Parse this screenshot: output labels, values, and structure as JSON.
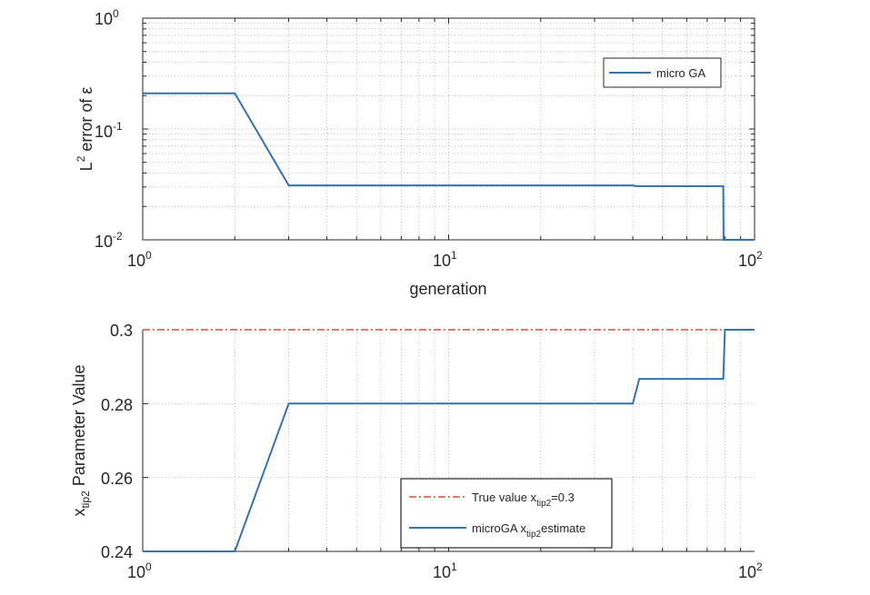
{
  "chart_data": [
    {
      "type": "line",
      "xscale": "log",
      "yscale": "log",
      "xlabel": "generation",
      "ylabel": "L² error of ε",
      "xlim": [
        1,
        100
      ],
      "ylim": [
        0.01,
        1
      ],
      "xticks": [
        "10^0",
        "10^1",
        "10^2"
      ],
      "yticks": [
        "10^-2",
        "10^-1",
        "10^0"
      ],
      "grid": true,
      "legend_position": "upper right",
      "series": [
        {
          "name": "micro GA",
          "color": "#3572b0",
          "x": [
            1,
            2,
            3,
            40,
            41,
            79,
            79.2,
            100
          ],
          "y": [
            0.21,
            0.21,
            0.031,
            0.031,
            0.0305,
            0.0305,
            0.01,
            0.01
          ]
        }
      ]
    },
    {
      "type": "line",
      "xscale": "log",
      "yscale": "linear",
      "xlabel": "generation",
      "ylabel": "x_tip2 Parameter Value",
      "xlim": [
        1,
        100
      ],
      "ylim": [
        0.24,
        0.3
      ],
      "xticks": [
        "10^0",
        "10^1",
        "10^2"
      ],
      "yticks": [
        "0.24",
        "0.26",
        "0.28",
        "0.3"
      ],
      "grid": true,
      "legend_position": "lower center",
      "series": [
        {
          "name": "True value x_tip2=0.3",
          "color": "#e8473f",
          "style": "dash-dot",
          "x": [
            1,
            100
          ],
          "y": [
            0.3,
            0.3
          ]
        },
        {
          "name": "microGA x_tip2 estimate",
          "color": "#3572b0",
          "x": [
            1,
            2,
            3,
            40,
            42,
            79,
            80,
            100
          ],
          "y": [
            0.24,
            0.24,
            0.28,
            0.28,
            0.2867,
            0.2867,
            0.3,
            0.3
          ]
        }
      ]
    }
  ],
  "top": {
    "ylabel_main": "error of",
    "ylabel_L": "L",
    "ylabel_sup": "2",
    "ylabel_eps": "ε",
    "xlabel": "generation",
    "yticks": [
      {
        "base": "10",
        "exp": "0"
      },
      {
        "base": "10",
        "exp": "-1"
      },
      {
        "base": "10",
        "exp": "-2"
      }
    ],
    "xticks": [
      {
        "base": "10",
        "exp": "0"
      },
      {
        "base": "10",
        "exp": "1"
      },
      {
        "base": "10",
        "exp": "2"
      }
    ],
    "legend": "micro GA"
  },
  "bottom": {
    "ylabel_x": "x",
    "ylabel_sub": "tip2",
    "ylabel_rest": "Parameter Value",
    "yticks": [
      "0.3",
      "0.28",
      "0.26",
      "0.24"
    ],
    "xticks": [
      {
        "base": "10",
        "exp": "0"
      },
      {
        "base": "10",
        "exp": "1"
      },
      {
        "base": "10",
        "exp": "2"
      }
    ],
    "legend": {
      "true_prefix": "True value x",
      "true_sub": "tip2",
      "true_suffix": "=0.3",
      "est_prefix": "microGA x",
      "est_sub": "tip2",
      "est_suffix": "estimate"
    }
  },
  "colors": {
    "series": "#3572b0",
    "true": "#e8473f",
    "grid": "#9a9a9a",
    "axis": "#262626"
  }
}
